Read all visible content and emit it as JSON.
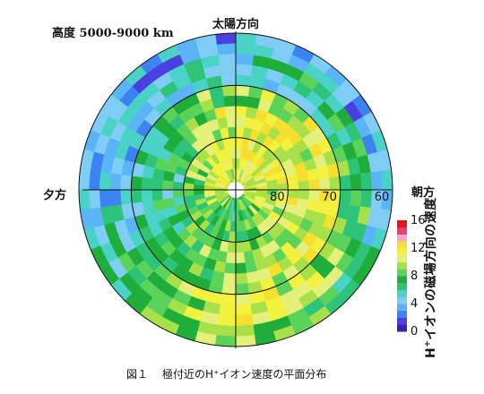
{
  "title": "高度 5000-9000 km",
  "direction_labels": {
    "top": "太陽方向",
    "left": "夕方",
    "right": "朝方"
  },
  "caption": {
    "figure": "図１",
    "text": "極付近のH⁺イオン速度の平面分布"
  },
  "colorbar": {
    "label_prefix": "H",
    "label_sup": "+",
    "label_rest": "イオンの磁場方向の速度",
    "tick_labels": [
      "16",
      "12",
      "8",
      "4",
      "0"
    ],
    "ticks": [
      16,
      12,
      8,
      4,
      0
    ],
    "min": 0,
    "max": 16,
    "colors": [
      "#3b1fb0",
      "#4a3fe0",
      "#3c82f0",
      "#5ab4f5",
      "#7fcdf5",
      "#4bd2c6",
      "#2dc47a",
      "#1fae3c",
      "#5bd25a",
      "#a8e04a",
      "#e4f07a",
      "#f2f23e",
      "#f5e030",
      "#f0a8c8",
      "#e84070",
      "#e8121e"
    ]
  },
  "chart_data": {
    "type": "heatmap",
    "projection": "polar (magnetic latitude vs. local time)",
    "radial_tick_labels": [
      "80",
      "70",
      "60"
    ],
    "radial_ticks_deg": [
      80,
      70,
      60
    ],
    "pole_latitude": 90,
    "outer_latitude": 60,
    "value_range": [
      0,
      16
    ],
    "sectors": [
      {
        "dir": "sun",
        "lat_bands": [
          [
            85,
            90,
            11
          ],
          [
            80,
            85,
            11
          ],
          [
            75,
            80,
            11
          ],
          [
            70,
            75,
            9
          ],
          [
            65,
            70,
            5
          ],
          [
            60,
            65,
            3
          ]
        ]
      },
      {
        "dir": "dawn",
        "lat_bands": [
          [
            85,
            90,
            11
          ],
          [
            80,
            85,
            11
          ],
          [
            75,
            80,
            11
          ],
          [
            70,
            75,
            12
          ],
          [
            65,
            70,
            8
          ],
          [
            60,
            65,
            4
          ]
        ]
      },
      {
        "dir": "night",
        "lat_bands": [
          [
            85,
            90,
            7
          ],
          [
            80,
            85,
            8
          ],
          [
            75,
            80,
            9
          ],
          [
            70,
            75,
            10
          ],
          [
            65,
            70,
            11
          ],
          [
            60,
            65,
            10
          ]
        ]
      },
      {
        "dir": "dusk",
        "lat_bands": [
          [
            85,
            90,
            11
          ],
          [
            80,
            85,
            8
          ],
          [
            75,
            80,
            6
          ],
          [
            70,
            75,
            5
          ],
          [
            65,
            70,
            4
          ],
          [
            60,
            65,
            4
          ]
        ]
      }
    ]
  }
}
